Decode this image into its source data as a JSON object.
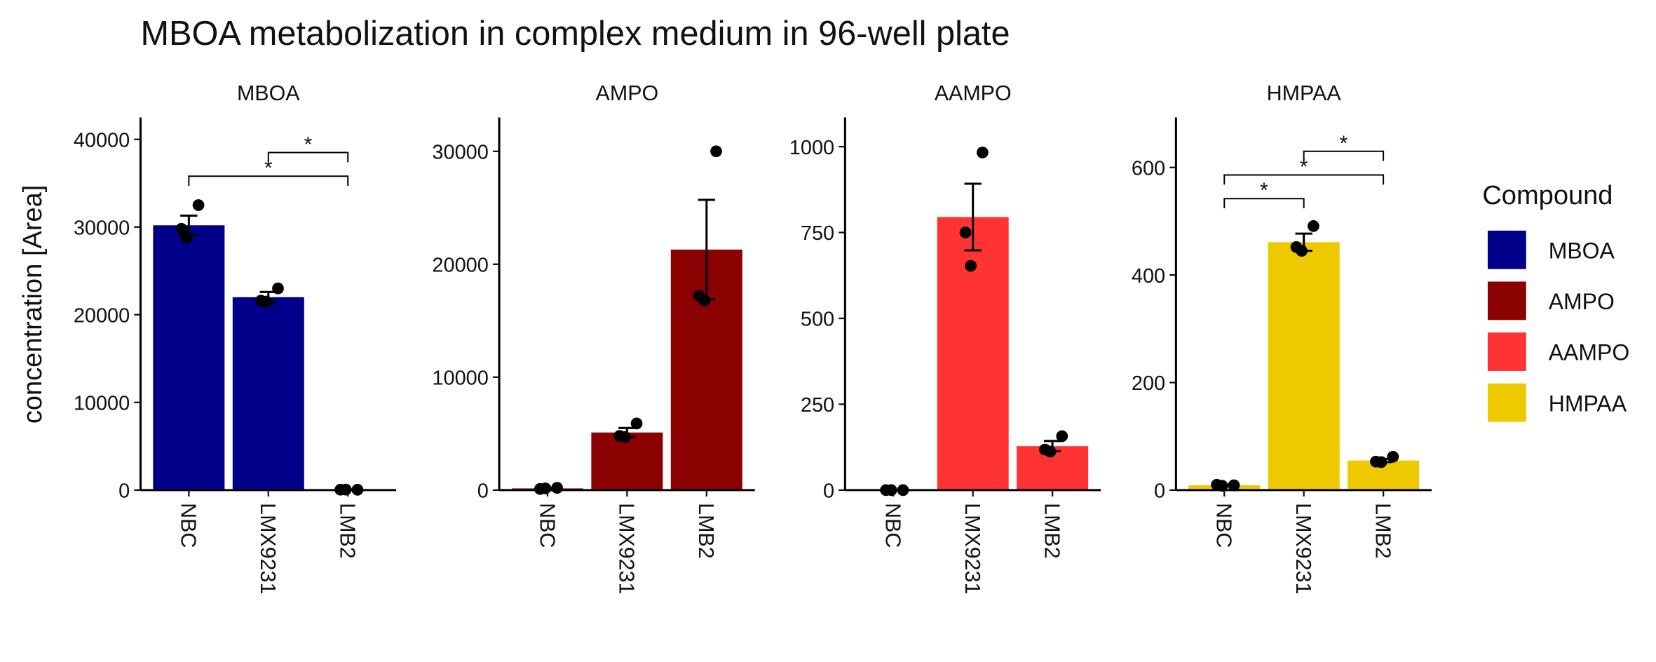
{
  "title": "MBOA metabolization in complex medium in 96-well plate",
  "y_label": "concentration [Area]",
  "legend": {
    "title": "Compound",
    "entries": [
      {
        "name": "MBOA",
        "color": "#00008b"
      },
      {
        "name": "AMPO",
        "color": "#8b0000"
      },
      {
        "name": "AAMPO",
        "color": "#ff3333"
      },
      {
        "name": "HMPAA",
        "color": "#eec900"
      }
    ]
  },
  "chart_data": [
    {
      "type": "bar",
      "title": "MBOA",
      "color": "#00008b",
      "categories": [
        "NBC",
        "LMX9231",
        "LMB2"
      ],
      "values": [
        30200,
        22000,
        50
      ],
      "errors": [
        1100,
        600,
        20
      ],
      "points": [
        [
          29800,
          32500,
          28800
        ],
        [
          21600,
          23000,
          21500
        ],
        [
          50,
          40,
          60
        ]
      ],
      "ylim": [
        0,
        42500
      ],
      "yticks": [
        0,
        10000,
        20000,
        30000,
        40000
      ],
      "comparisons": [
        {
          "groups": [
            "LMX9231",
            "LMB2"
          ],
          "value": 38500,
          "label": "*"
        },
        {
          "groups": [
            "NBC",
            "LMB2"
          ],
          "value": 35800,
          "label": "*"
        }
      ]
    },
    {
      "type": "bar",
      "title": "AMPO",
      "color": "#8b0000",
      "categories": [
        "NBC",
        "LMX9231",
        "LMB2"
      ],
      "values": [
        150,
        5100,
        21300
      ],
      "errors": [
        40,
        400,
        4400
      ],
      "points": [
        [
          100,
          200,
          150
        ],
        [
          4800,
          5900,
          4700
        ],
        [
          17200,
          30000,
          16800
        ]
      ],
      "ylim": [
        0,
        33000
      ],
      "yticks": [
        0,
        10000,
        20000,
        30000
      ],
      "comparisons": []
    },
    {
      "type": "bar",
      "title": "AAMPO",
      "color": "#ff3333",
      "categories": [
        "NBC",
        "LMX9231",
        "LMB2"
      ],
      "values": [
        0,
        795,
        128
      ],
      "errors": [
        0,
        97,
        15
      ],
      "points": [
        [
          0,
          0,
          0
        ],
        [
          750,
          983,
          653
        ],
        [
          118,
          157,
          112
        ]
      ],
      "ylim": [
        0,
        1085
      ],
      "yticks": [
        0,
        250,
        500,
        750,
        1000
      ],
      "comparisons": []
    },
    {
      "type": "bar",
      "title": "HMPAA",
      "color": "#eec900",
      "categories": [
        "NBC",
        "LMX9231",
        "LMB2"
      ],
      "values": [
        9,
        461,
        55
      ],
      "errors": [
        1,
        16,
        3
      ],
      "points": [
        [
          10,
          9,
          8
        ],
        [
          452,
          491,
          445
        ],
        [
          53,
          62,
          52
        ]
      ],
      "ylim": [
        0,
        693
      ],
      "yticks": [
        0,
        200,
        400,
        600
      ],
      "comparisons": [
        {
          "groups": [
            "NBC",
            "LMX9231"
          ],
          "value": 542,
          "label": "*"
        },
        {
          "groups": [
            "NBC",
            "LMB2"
          ],
          "value": 586,
          "label": "*"
        },
        {
          "groups": [
            "LMX9231",
            "LMB2"
          ],
          "value": 630,
          "label": "*"
        }
      ]
    }
  ]
}
